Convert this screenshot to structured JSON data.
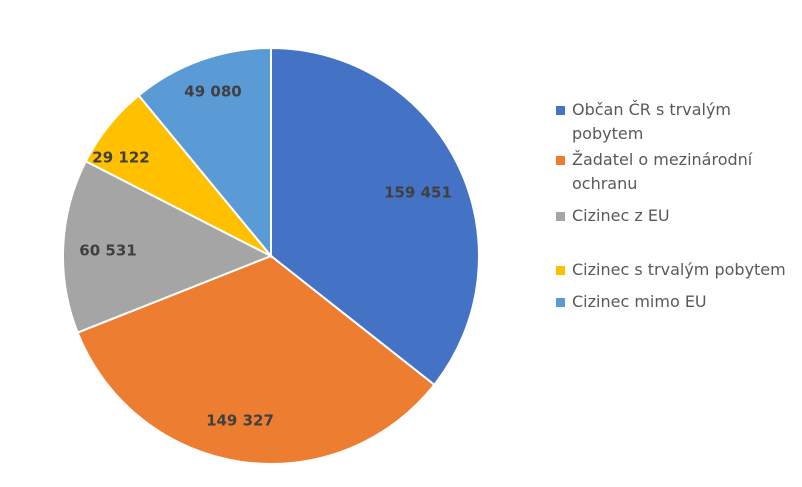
{
  "chart_data": {
    "type": "pie",
    "title": "",
    "categories": [
      "Občan ČR s trvalým pobytem",
      "Žadatel o mezinárodní ochranu",
      "Cizinec z EU",
      "Cizinec s trvalým pobytem",
      "Cizinec mimo EU"
    ],
    "values": [
      159451,
      149327,
      60531,
      29122,
      49080
    ],
    "value_labels": [
      "159 451",
      "149 327",
      "60 531",
      "29 122",
      "49 080"
    ],
    "colors": [
      "#4472C4",
      "#ED7D31",
      "#A5A5A5",
      "#FFC000",
      "#5B9BD5"
    ],
    "start_angle": "12 o'clock",
    "direction": "clockwise",
    "legend_position": "right"
  }
}
